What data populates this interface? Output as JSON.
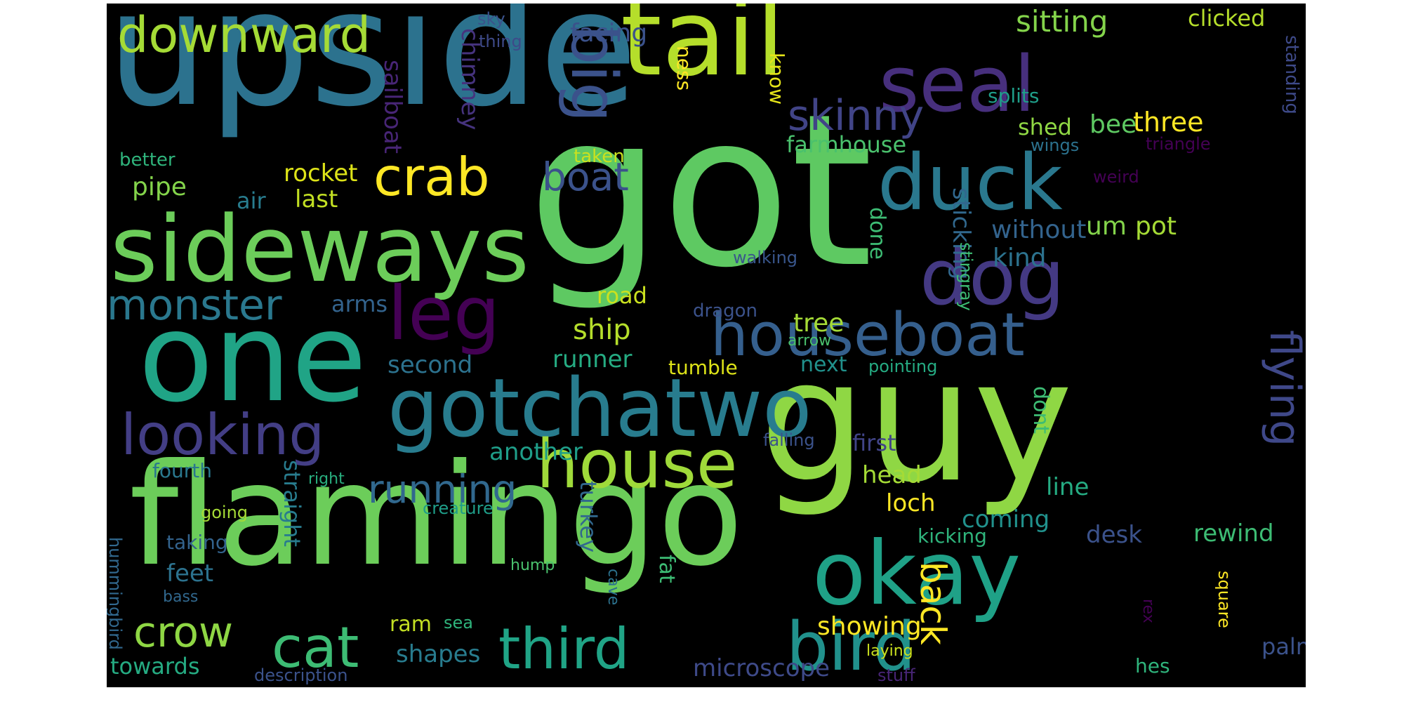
{
  "words": [
    {
      "text": "got",
      "color": "#5ec962"
    },
    {
      "text": "upside",
      "color": "#2c728e"
    },
    {
      "text": "flamingo",
      "color": "#6ccd5a"
    },
    {
      "text": "guy",
      "color": "#8fd744"
    },
    {
      "text": "tail",
      "color": "#b5de2b"
    },
    {
      "text": "one",
      "color": "#20a486"
    },
    {
      "text": "sideways",
      "color": "#6ccd5a"
    },
    {
      "text": "gotchatwo",
      "color": "#287c8e"
    },
    {
      "text": "okay",
      "color": "#1fa187"
    },
    {
      "text": "seal",
      "color": "#472f7d"
    },
    {
      "text": "duck",
      "color": "#2a788e"
    },
    {
      "text": "dog",
      "color": "#443983"
    },
    {
      "text": "house",
      "color": "#9fda3a"
    },
    {
      "text": "houseboat",
      "color": "#355f8d"
    },
    {
      "text": "bird",
      "color": "#21918c"
    },
    {
      "text": "leg",
      "color": "#440154"
    },
    {
      "text": "big",
      "color": "#3b528b"
    },
    {
      "text": "looking",
      "color": "#433e85"
    },
    {
      "text": "third",
      "color": "#20a486"
    },
    {
      "text": "downward",
      "color": "#a5db36"
    },
    {
      "text": "crab",
      "color": "#fde725"
    },
    {
      "text": "monster",
      "color": "#2a788e"
    },
    {
      "text": "cat",
      "color": "#3dbc74"
    },
    {
      "text": "flying",
      "color": "#3f4889"
    },
    {
      "text": "skinny",
      "color": "#414487"
    },
    {
      "text": "running",
      "color": "#31688e"
    },
    {
      "text": "crow",
      "color": "#8fd744"
    },
    {
      "text": "boat",
      "color": "#3b528b"
    },
    {
      "text": "back",
      "color": "#fde725"
    },
    {
      "text": "sitting",
      "color": "#84d44b"
    },
    {
      "text": "clicked",
      "color": "#b5de2b"
    },
    {
      "text": "facing",
      "color": "#3b528b"
    },
    {
      "text": "sky",
      "color": "#3b528b"
    },
    {
      "text": "thing",
      "color": "#3e4a89"
    },
    {
      "text": "chimney",
      "color": "#46337e"
    },
    {
      "text": "sailboat",
      "color": "#482576"
    },
    {
      "text": "ness",
      "color": "#fde725"
    },
    {
      "text": "know",
      "color": "#e5e419"
    },
    {
      "text": "splits",
      "color": "#1f9e89"
    },
    {
      "text": "shed",
      "color": "#8fd744"
    },
    {
      "text": "bee",
      "color": "#5ec962"
    },
    {
      "text": "three",
      "color": "#fde725"
    },
    {
      "text": "wings",
      "color": "#2c728e"
    },
    {
      "text": "triangle",
      "color": "#440154"
    },
    {
      "text": "standing",
      "color": "#3e4a89"
    },
    {
      "text": "farmhouse",
      "color": "#4ac16d"
    },
    {
      "text": "better",
      "color": "#2fb47c"
    },
    {
      "text": "taken",
      "color": "#cae11f"
    },
    {
      "text": "rocket",
      "color": "#dde318"
    },
    {
      "text": "air",
      "color": "#287c8e"
    },
    {
      "text": "last",
      "color": "#c2df23"
    },
    {
      "text": "pipe",
      "color": "#84d44b"
    },
    {
      "text": "sticking",
      "color": "#31688e"
    },
    {
      "text": "stingray",
      "color": "#3dbc74"
    },
    {
      "text": "weird",
      "color": "#440154"
    },
    {
      "text": "without",
      "color": "#33638d"
    },
    {
      "text": "um",
      "color": "#84d44b"
    },
    {
      "text": "pot",
      "color": "#a5db36"
    },
    {
      "text": "kind",
      "color": "#2c728e"
    },
    {
      "text": "done",
      "color": "#3dbc74"
    },
    {
      "text": "walking",
      "color": "#39568c"
    },
    {
      "text": "road",
      "color": "#cae11f"
    },
    {
      "text": "arms",
      "color": "#33638d"
    },
    {
      "text": "dragon",
      "color": "#3b528b"
    },
    {
      "text": "ship",
      "color": "#b5de2b"
    },
    {
      "text": "tree",
      "color": "#a5db36"
    },
    {
      "text": "arrow",
      "color": "#4ac16d"
    },
    {
      "text": "second",
      "color": "#2c728e"
    },
    {
      "text": "runner",
      "color": "#25ab82"
    },
    {
      "text": "tumble",
      "color": "#dde318"
    },
    {
      "text": "next",
      "color": "#21918c"
    },
    {
      "text": "pointing",
      "color": "#25ab82"
    },
    {
      "text": "dont",
      "color": "#3dbc74"
    },
    {
      "text": "another",
      "color": "#1f9e89"
    },
    {
      "text": "first",
      "color": "#414487"
    },
    {
      "text": "falling",
      "color": "#3b528b"
    },
    {
      "text": "fourth",
      "color": "#2a788e"
    },
    {
      "text": "right",
      "color": "#29af7f"
    },
    {
      "text": "head",
      "color": "#a5db36"
    },
    {
      "text": "line",
      "color": "#25ab82"
    },
    {
      "text": "straight",
      "color": "#287c8e"
    },
    {
      "text": "turkey",
      "color": "#31688e"
    },
    {
      "text": "loch",
      "color": "#fde725"
    },
    {
      "text": "going",
      "color": "#a5db36"
    },
    {
      "text": "creature",
      "color": "#1f9e89"
    },
    {
      "text": "coming",
      "color": "#21918c"
    },
    {
      "text": "taking",
      "color": "#33638d"
    },
    {
      "text": "kicking",
      "color": "#2fb47c"
    },
    {
      "text": "desk",
      "color": "#3b528b"
    },
    {
      "text": "rewind",
      "color": "#3dbc74"
    },
    {
      "text": "hummingbird",
      "color": "#31688e"
    },
    {
      "text": "feet",
      "color": "#2c728e"
    },
    {
      "text": "fat",
      "color": "#3dbc74"
    },
    {
      "text": "hump",
      "color": "#4ac16d"
    },
    {
      "text": "cave",
      "color": "#2c728e"
    },
    {
      "text": "bass",
      "color": "#31688e"
    },
    {
      "text": "ram",
      "color": "#c2df23"
    },
    {
      "text": "sea",
      "color": "#2fb47c"
    },
    {
      "text": "showing",
      "color": "#fde725"
    },
    {
      "text": "palm",
      "color": "#3b528b"
    },
    {
      "text": "rex",
      "color": "#440154"
    },
    {
      "text": "square",
      "color": "#fde725"
    },
    {
      "text": "towards",
      "color": "#25ab82"
    },
    {
      "text": "shapes",
      "color": "#287c8e"
    },
    {
      "text": "microscope",
      "color": "#3e4a89"
    },
    {
      "text": "laying",
      "color": "#cae11f"
    },
    {
      "text": "description",
      "color": "#3b528b"
    },
    {
      "text": "stuff",
      "color": "#482576"
    },
    {
      "text": "hes",
      "color": "#2fb47c"
    }
  ]
}
